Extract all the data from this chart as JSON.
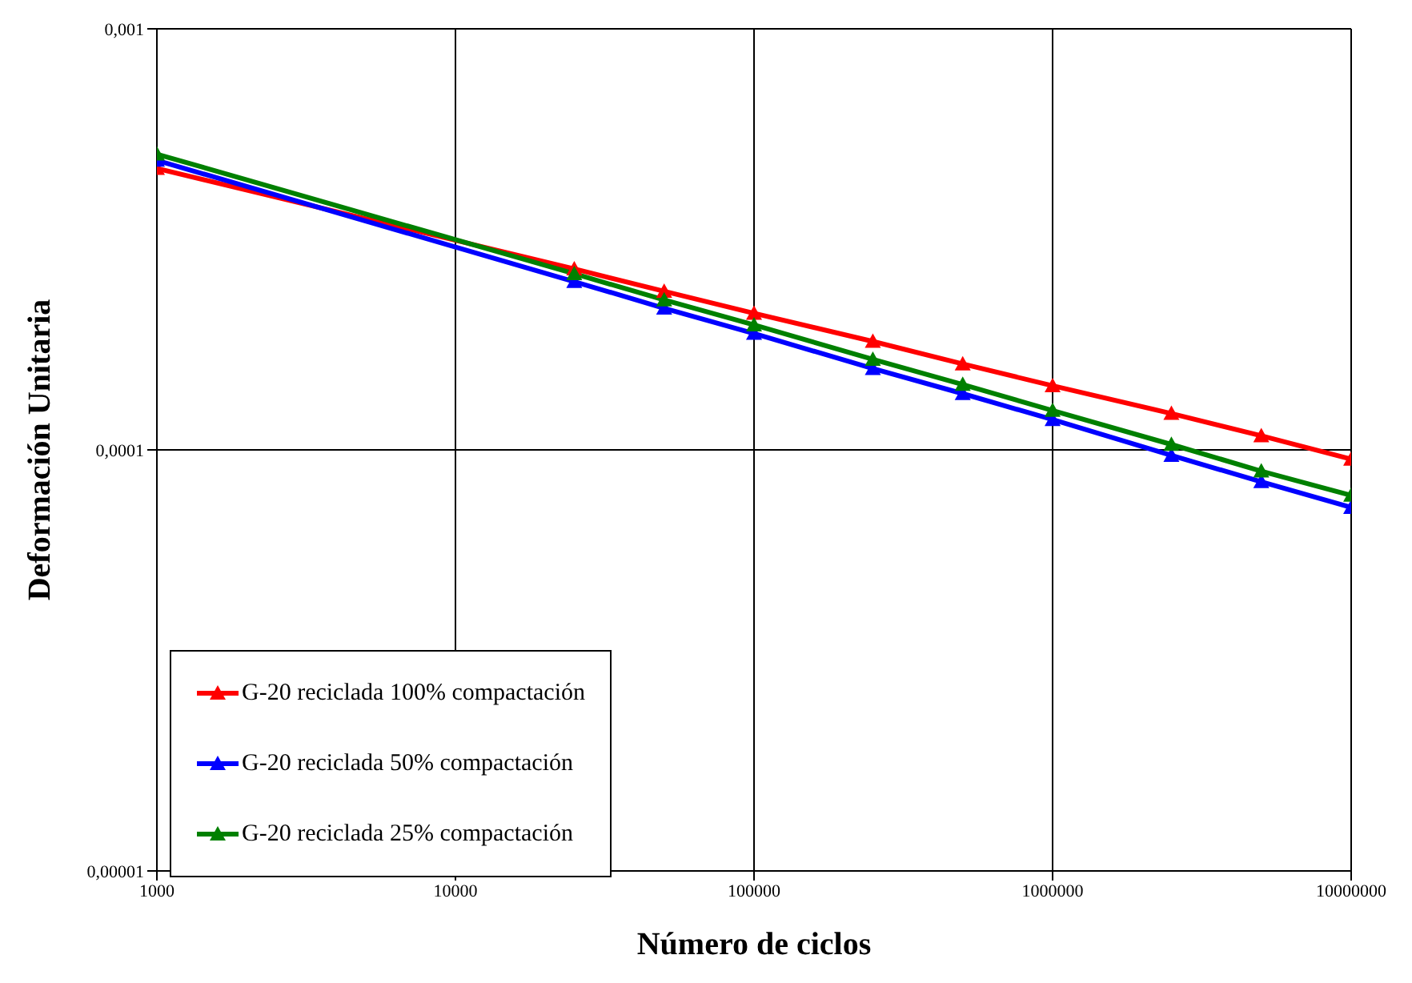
{
  "chart_data": {
    "type": "line",
    "xlabel": "Número de ciclos",
    "ylabel": "Deformación Unitaria",
    "log": "xy",
    "x": [
      1000,
      25000,
      50000,
      100000,
      250000,
      500000,
      1000000,
      2500000,
      5000000,
      10000000
    ],
    "series": [
      {
        "name": "G-20 reciclada 100% compactación",
        "color": "#ff0000",
        "values": [
          0.000466,
          0.000269,
          0.000238,
          0.000211,
          0.000181,
          0.00016,
          0.000142,
          0.000122,
          0.000108,
          9.5e-05
        ]
      },
      {
        "name": "G-20 reciclada 50% compactación",
        "color": "#0000ff",
        "values": [
          0.000487,
          0.000251,
          0.000217,
          0.000189,
          0.000156,
          0.000136,
          0.000118,
          9.7e-05,
          8.4e-05,
          7.3e-05
        ]
      },
      {
        "name": "G-20 reciclada 25% compactación",
        "color": "#008000",
        "values": [
          0.000504,
          0.000262,
          0.000227,
          0.000198,
          0.000164,
          0.000143,
          0.000124,
          0.000103,
          8.9e-05,
          7.8e-05
        ]
      }
    ],
    "xlim": [
      1000,
      10000000
    ],
    "xticks": [
      1000,
      10000,
      100000,
      1000000,
      10000000
    ],
    "ylim": [
      1e-05,
      0.001
    ],
    "yticks": [
      {
        "value": 1e-05,
        "label": "0,00001"
      },
      {
        "value": 0.0001,
        "label": "0,0001"
      },
      {
        "value": 0.001,
        "label": "0,001"
      }
    ],
    "grid": true,
    "legend": "bottom left",
    "marker": "triangle",
    "line_style": "solid"
  }
}
